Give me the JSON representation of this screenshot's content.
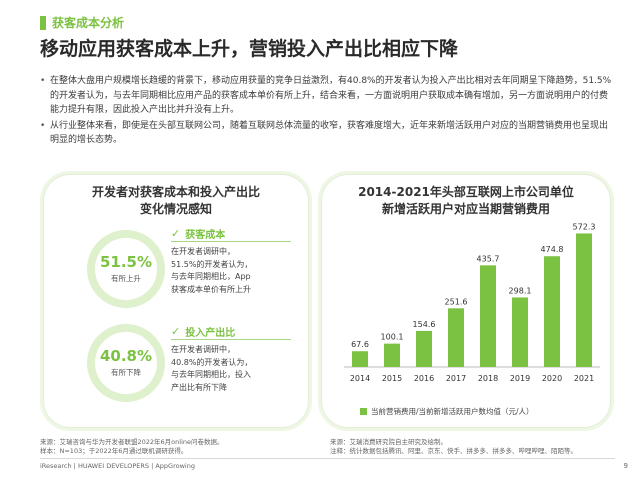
{
  "section_tag": "获客成本分析",
  "title": "移动应用获客成本上升，营销投入产出比相应下降",
  "bullets": [
    "在整体大盘用户规模增长趋缓的背景下，移动应用获量的竞争日益激烈，有40.8%的开发者认为投入产出比相对去年同期呈下降趋势，51.5%的开发者认为，与去年同期相比应用产品的获客成本单价有所上升，结合来看，一方面说明用户获取成本确有增加，另一方面说明用户的付费能力提升有限，因此投入产出比并升没有上升。",
    "从行业整体来看，即使是在头部互联网公司，随着互联网总体流量的收窄，获客难度增大，近年来新增活跃用户对应的当期营销费用也呈现出明显的增长态势。"
  ],
  "left_panel": {
    "title_line1": "开发者对获客成本和投入产出比",
    "title_line2": "变化情况感知",
    "items": [
      {
        "pct": "51.5%",
        "pct_value": 51.5,
        "ring_label": "有所上升",
        "name": "获客成本",
        "desc": [
          "在开发者调研中，",
          "51.5%的开发者认为，",
          "与去年同期相比，App",
          "获客成本单价有所上升"
        ]
      },
      {
        "pct": "40.8%",
        "pct_value": 40.8,
        "ring_label": "有所下降",
        "name": "投入产出比",
        "desc": [
          "在开发者调研中，",
          "40.8%的开发者认为，",
          "与去年同期相比，投入",
          "产出比有所下降"
        ]
      }
    ]
  },
  "chart_data": {
    "type": "bar",
    "title_line1": "2014-2021年头部互联网上市公司单位",
    "title_line2": "新增活跃用户对应当期营销费用",
    "categories": [
      "2014",
      "2015",
      "2016",
      "2017",
      "2018",
      "2019",
      "2020",
      "2021"
    ],
    "values": [
      67.6,
      100.1,
      154.6,
      251.6,
      435.7,
      298.1,
      474.8,
      572.3
    ],
    "value_labels": [
      "67.6",
      "100.1",
      "154.6",
      "251.6",
      "435.7",
      "298.1",
      "474.8",
      "572.3"
    ],
    "series": [
      {
        "name": "当前营销费用/当前新增活跃用户数均值（元/人）",
        "values": [
          67.6,
          100.1,
          154.6,
          251.6,
          435.7,
          298.1,
          474.8,
          572.3
        ]
      }
    ],
    "ylim": [
      0,
      600
    ],
    "grid": false,
    "legend": "bottom",
    "colors": {
      "bar": "#7cc242"
    }
  },
  "sources": {
    "left_line1": "来源：艾瑞咨询与华为开发者联盟2022年6月online问卷数据。",
    "left_line2": "样本：N=103；于2022年6月通过联机调研获得。",
    "right_line1": "来源：艾瑞消费研究院自主研究及绘制。",
    "right_line2": "注释：统计数据包括腾讯、阿里、京东、快手、拼多多、拼多多、哔哩哔哩、陌陌等。"
  },
  "footer": "iResearch | HUAWEI DEVELOPERS | AppGrowing",
  "page_number": "9",
  "colors": {
    "accent": "#7cc242",
    "accent_light": "#dff0cc"
  }
}
